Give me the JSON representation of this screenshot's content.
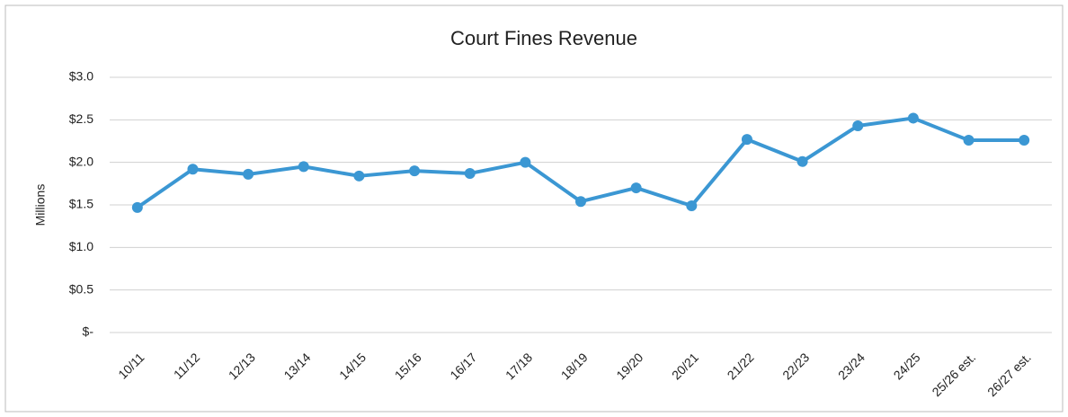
{
  "chart_data": {
    "type": "line",
    "title": "Court Fines Revenue",
    "ylabel": "Millions",
    "categories": [
      "10/11",
      "11/12",
      "12/13",
      "13/14",
      "14/15",
      "15/16",
      "16/17",
      "17/18",
      "18/19",
      "19/20",
      "20/21",
      "21/22",
      "22/23",
      "23/24",
      "24/25",
      "25/26 est.",
      "26/27 est."
    ],
    "series": [
      {
        "name": "Court Fines Revenue",
        "color": "#3b97d3",
        "values": [
          1.47,
          1.92,
          1.86,
          1.95,
          1.84,
          1.9,
          1.87,
          2.0,
          1.54,
          1.7,
          1.49,
          2.27,
          2.01,
          2.43,
          2.52,
          2.26,
          2.26
        ]
      }
    ],
    "ylim": [
      0,
      3
    ],
    "yticks": [
      {
        "value": 0,
        "label": "$-"
      },
      {
        "value": 0.5,
        "label": "$0.5"
      },
      {
        "value": 1,
        "label": "$1.0"
      },
      {
        "value": 1.5,
        "label": "$1.5"
      },
      {
        "value": 2,
        "label": "$2.0"
      },
      {
        "value": 2.5,
        "label": "$2.5"
      },
      {
        "value": 3,
        "label": "$3.0"
      }
    ],
    "grid": true
  }
}
